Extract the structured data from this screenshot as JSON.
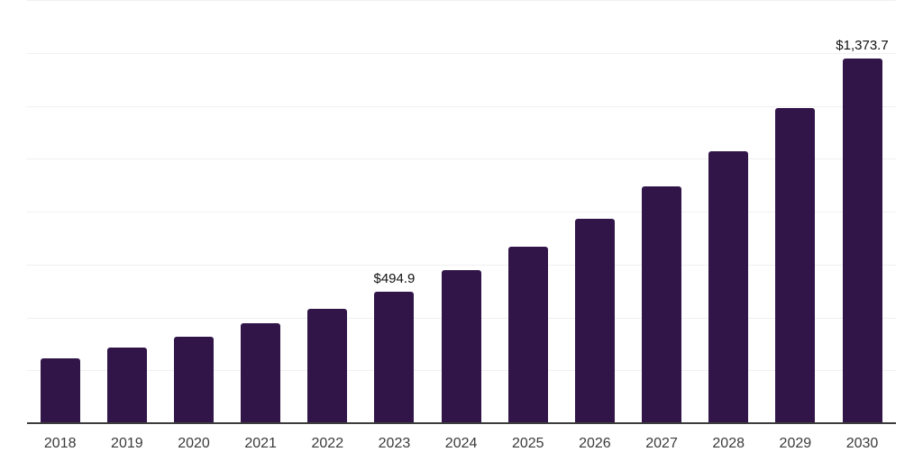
{
  "chart_data": {
    "type": "bar",
    "categories": [
      "2018",
      "2019",
      "2020",
      "2021",
      "2022",
      "2023",
      "2024",
      "2025",
      "2026",
      "2027",
      "2028",
      "2029",
      "2030"
    ],
    "values": [
      243,
      281,
      322,
      373,
      428,
      494.9,
      575,
      665,
      768,
      892,
      1026,
      1187,
      1373.7
    ],
    "data_labels": [
      {
        "category": "2023",
        "text": "$494.9"
      },
      {
        "category": "2030",
        "text": "$1,373.7"
      }
    ],
    "ylim": [
      0,
      1600
    ],
    "grid_step": 200,
    "grid_visible": true,
    "y_axis_tick_labels_visible": false,
    "legend": "none",
    "xlabel": "",
    "ylabel": "",
    "colors": {
      "bar": "#311549",
      "gridline": "#f0f0f1",
      "axis_line": "#3c3c3c",
      "tick_label": "#3a3a3a",
      "value_label": "#111111"
    }
  }
}
